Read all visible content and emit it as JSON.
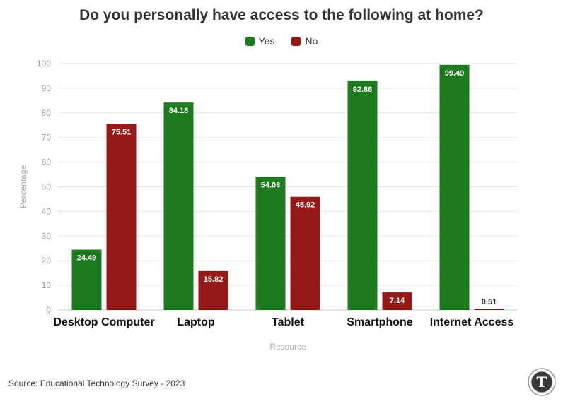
{
  "chart_data": {
    "type": "bar",
    "title": "Do you personally have access to the following at home?",
    "xlabel": "Resource",
    "ylabel": "Percentage",
    "ylim": [
      0,
      100
    ],
    "yticks": [
      0,
      10,
      20,
      30,
      40,
      50,
      60,
      70,
      80,
      90,
      100
    ],
    "categories": [
      "Desktop Computer",
      "Laptop",
      "Tablet",
      "Smartphone",
      "Internet Access"
    ],
    "series": [
      {
        "name": "Yes",
        "color": "#1e7a1e",
        "values": [
          24.49,
          84.18,
          54.08,
          92.86,
          99.49
        ]
      },
      {
        "name": "No",
        "color": "#941a1a",
        "values": [
          75.51,
          15.82,
          45.92,
          7.14,
          0.51
        ]
      }
    ],
    "grid": true,
    "legend_position": "top-center"
  },
  "footer": {
    "source": "Source: Educational Technology Survey - 2023",
    "logo_letter": "T"
  }
}
